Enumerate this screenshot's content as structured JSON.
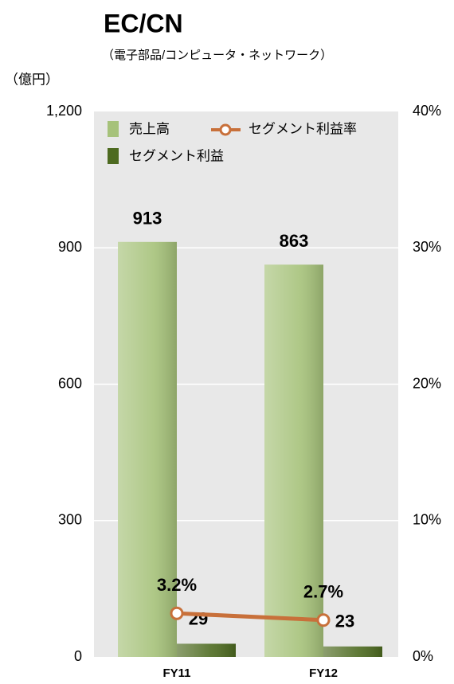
{
  "chart_data": {
    "type": "bar",
    "title": "EC/CN",
    "subtitle": "（電子部品/コンピュータ・ネットワーク）",
    "y_axis_label": "（億円）",
    "categories": [
      "FY11",
      "FY12"
    ],
    "series": [
      {
        "name": "売上高",
        "type": "bar",
        "color": "#a6c27a",
        "values": [
          913,
          863
        ]
      },
      {
        "name": "セグメント利益",
        "type": "bar",
        "color": "#4d6a20",
        "values": [
          29,
          23
        ]
      },
      {
        "name": "セグメント利益率",
        "type": "line",
        "axis": "y2",
        "color": "#c8703a",
        "values": [
          3.2,
          2.7
        ],
        "value_labels": [
          "3.2%",
          "2.7%"
        ]
      }
    ],
    "ylim": [
      0,
      1200
    ],
    "yticks": [
      0,
      300,
      600,
      900,
      {
        "value": 1200,
        "label": "1,200"
      }
    ],
    "y2lim": [
      0,
      40
    ],
    "y2ticks": [
      {
        "value": 0,
        "label": "0%"
      },
      {
        "value": 10,
        "label": "10%"
      },
      {
        "value": 20,
        "label": "20%"
      },
      {
        "value": 30,
        "label": "30%"
      },
      {
        "value": 40,
        "label": "40%"
      }
    ],
    "grid": true
  }
}
